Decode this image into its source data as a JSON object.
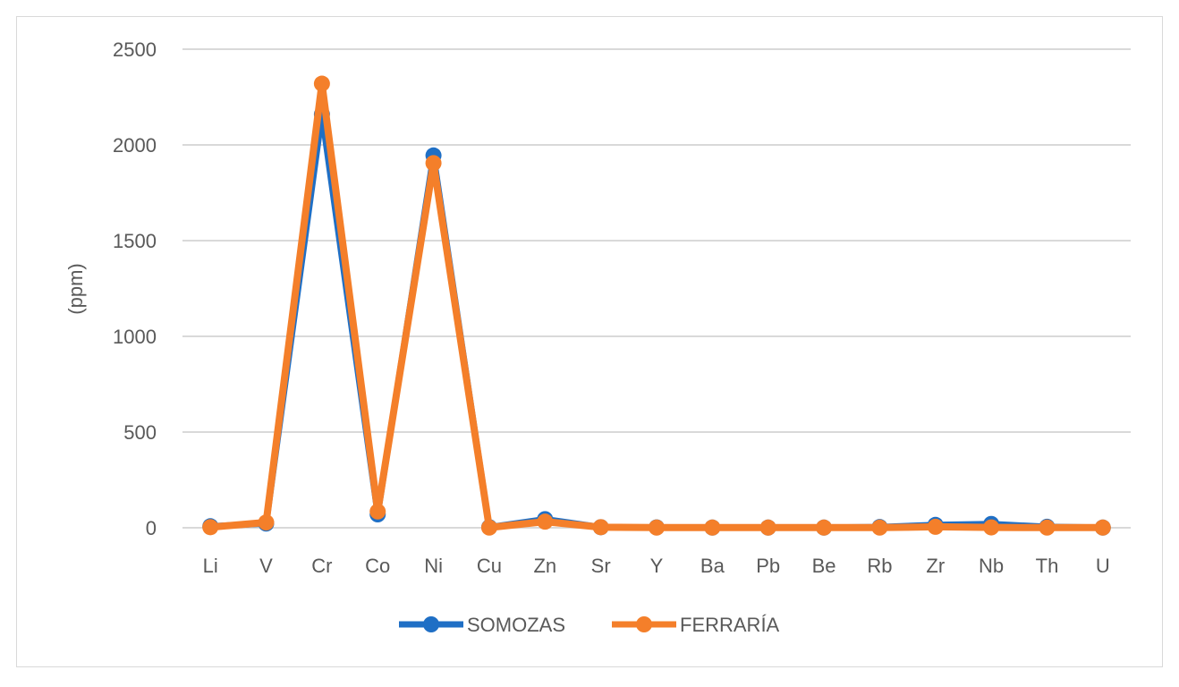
{
  "chart_data": {
    "type": "line",
    "title": "",
    "xlabel": "",
    "ylabel": "(ppm)",
    "ylim": [
      0,
      2500
    ],
    "yticks": [
      0,
      500,
      1000,
      1500,
      2000,
      2500
    ],
    "grid": true,
    "legend_position": "bottom",
    "categories": [
      "Li",
      "V",
      "Cr",
      "Co",
      "Ni",
      "Cu",
      "Zn",
      "Sr",
      "Y",
      "Ba",
      "Pb",
      "Be",
      "Rb",
      "Zr",
      "Nb",
      "Th",
      "U"
    ],
    "series": [
      {
        "name": "SOMOZAS",
        "color": "#1f6fc5",
        "values": [
          8,
          22,
          2160,
          70,
          1945,
          3,
          45,
          3,
          2,
          1,
          1,
          1,
          4,
          15,
          20,
          5,
          1
        ]
      },
      {
        "name": "FERRARÍA",
        "color": "#f47f2a",
        "values": [
          3,
          28,
          2320,
          85,
          1905,
          1,
          32,
          3,
          1,
          1,
          1,
          1,
          1,
          5,
          2,
          1,
          1
        ]
      }
    ]
  }
}
